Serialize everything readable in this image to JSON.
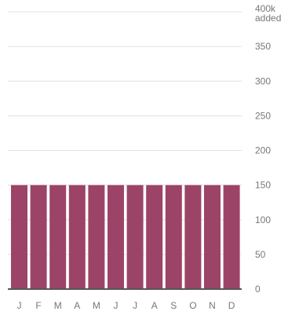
{
  "chart_data": {
    "type": "bar",
    "categories": [
      "J",
      "F",
      "M",
      "A",
      "M",
      "J",
      "J",
      "A",
      "S",
      "O",
      "N",
      "D"
    ],
    "values": [
      150,
      150,
      150,
      150,
      150,
      150,
      150,
      150,
      150,
      150,
      150,
      150
    ],
    "y_ticks": [
      {
        "value": 0,
        "label": "0"
      },
      {
        "value": 50,
        "label": "50"
      },
      {
        "value": 100,
        "label": "100"
      },
      {
        "value": 150,
        "label": "150"
      },
      {
        "value": 200,
        "label": "200"
      },
      {
        "value": 250,
        "label": "250"
      },
      {
        "value": 300,
        "label": "300"
      },
      {
        "value": 350,
        "label": "350"
      },
      {
        "value": 400,
        "label": "400k",
        "sublabel": "added"
      }
    ],
    "ylim": [
      0,
      400
    ],
    "y_axis_side": "right",
    "grid": true,
    "colors": {
      "bar": "#9c4467",
      "grid": "#e0e0e0",
      "baseline": "#555555",
      "tick_text": "#777777"
    }
  }
}
